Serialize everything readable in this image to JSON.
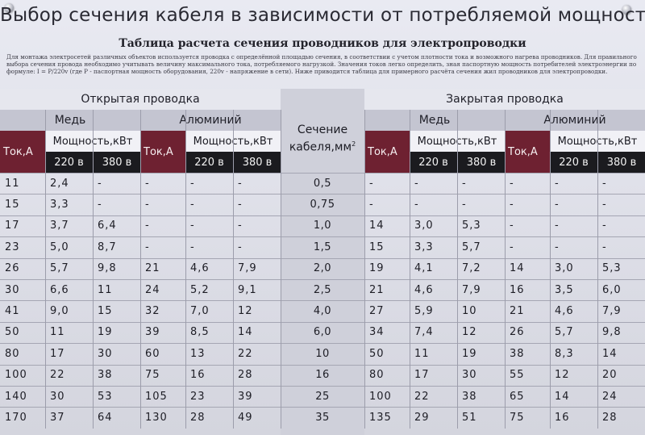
{
  "title": "Выбор сечения кабеля в зависимости от потребляемой мощности",
  "subtitle": "Таблица расчета сечения проводников для электропроводки",
  "note": "Для монтажа электросетей различных объектов используется проводка с определённой площадью сечения, в соответствии с учетом плотности тока и возможного нагрева проводников. Для правильного выбора сечения провода необходимо учитывать величину максимального тока, потребляемого нагрузкой. Значения токов легко определить, зная паспортную мощность потребителей электроэнергии по формуле: I = P/220v (где P - паспортная мощность оборудования, 220v - напряжение в сети). Ниже приводится таблица для примерного расчёта сечения жил проводников для электропроводки.",
  "headers": {
    "open_wiring": "Открытая проводка",
    "closed_wiring": "Закрытая проводка",
    "copper": "Медь",
    "aluminum": "Алюминий",
    "current": "Ток,А",
    "power": "Мощность,кВт",
    "v220": "220 в",
    "v380": "380 в",
    "section_line1": "Сечение",
    "section_line2": "кабеля,мм",
    "section_sup": "2"
  },
  "rows": [
    {
      "oc_i": "11",
      "oc_220": "2,4",
      "oc_380": "-",
      "oa_i": "-",
      "oa_220": "-",
      "oa_380": "-",
      "section": "0,5",
      "cc_i": "-",
      "cc_220": "-",
      "cc_380": "-",
      "ca_i": "-",
      "ca_220": "-",
      "ca_380": "-"
    },
    {
      "oc_i": "15",
      "oc_220": "3,3",
      "oc_380": "-",
      "oa_i": "-",
      "oa_220": "-",
      "oa_380": "-",
      "section": "0,75",
      "cc_i": "-",
      "cc_220": "-",
      "cc_380": "-",
      "ca_i": "-",
      "ca_220": "-",
      "ca_380": "-"
    },
    {
      "oc_i": "17",
      "oc_220": "3,7",
      "oc_380": "6,4",
      "oa_i": "-",
      "oa_220": "-",
      "oa_380": "-",
      "section": "1,0",
      "cc_i": "14",
      "cc_220": "3,0",
      "cc_380": "5,3",
      "ca_i": "-",
      "ca_220": "-",
      "ca_380": "-"
    },
    {
      "oc_i": "23",
      "oc_220": "5,0",
      "oc_380": "8,7",
      "oa_i": "-",
      "oa_220": "-",
      "oa_380": "-",
      "section": "1,5",
      "cc_i": "15",
      "cc_220": "3,3",
      "cc_380": "5,7",
      "ca_i": "-",
      "ca_220": "-",
      "ca_380": "-"
    },
    {
      "oc_i": "26",
      "oc_220": "5,7",
      "oc_380": "9,8",
      "oa_i": "21",
      "oa_220": "4,6",
      "oa_380": "7,9",
      "section": "2,0",
      "cc_i": "19",
      "cc_220": "4,1",
      "cc_380": "7,2",
      "ca_i": "14",
      "ca_220": "3,0",
      "ca_380": "5,3"
    },
    {
      "oc_i": "30",
      "oc_220": "6,6",
      "oc_380": "11",
      "oa_i": "24",
      "oa_220": "5,2",
      "oa_380": "9,1",
      "section": "2,5",
      "cc_i": "21",
      "cc_220": "4,6",
      "cc_380": "7,9",
      "ca_i": "16",
      "ca_220": "3,5",
      "ca_380": "6,0"
    },
    {
      "oc_i": "41",
      "oc_220": "9,0",
      "oc_380": "15",
      "oa_i": "32",
      "oa_220": "7,0",
      "oa_380": "12",
      "section": "4,0",
      "cc_i": "27",
      "cc_220": "5,9",
      "cc_380": "10",
      "ca_i": "21",
      "ca_220": "4,6",
      "ca_380": "7,9"
    },
    {
      "oc_i": "50",
      "oc_220": "11",
      "oc_380": "19",
      "oa_i": "39",
      "oa_220": "8,5",
      "oa_380": "14",
      "section": "6,0",
      "cc_i": "34",
      "cc_220": "7,4",
      "cc_380": "12",
      "ca_i": "26",
      "ca_220": "5,7",
      "ca_380": "9,8"
    },
    {
      "oc_i": "80",
      "oc_220": "17",
      "oc_380": "30",
      "oa_i": "60",
      "oa_220": "13",
      "oa_380": "22",
      "section": "10",
      "cc_i": "50",
      "cc_220": "11",
      "cc_380": "19",
      "ca_i": "38",
      "ca_220": "8,3",
      "ca_380": "14"
    },
    {
      "oc_i": "100",
      "oc_220": "22",
      "oc_380": "38",
      "oa_i": "75",
      "oa_220": "16",
      "oa_380": "28",
      "section": "16",
      "cc_i": "80",
      "cc_220": "17",
      "cc_380": "30",
      "ca_i": "55",
      "ca_220": "12",
      "ca_380": "20"
    },
    {
      "oc_i": "140",
      "oc_220": "30",
      "oc_380": "53",
      "oa_i": "105",
      "oa_220": "23",
      "oa_380": "39",
      "section": "25",
      "cc_i": "100",
      "cc_220": "22",
      "cc_380": "38",
      "ca_i": "65",
      "ca_220": "14",
      "ca_380": "24"
    },
    {
      "oc_i": "170",
      "oc_220": "37",
      "oc_380": "64",
      "oa_i": "130",
      "oa_220": "28",
      "oa_380": "49",
      "section": "35",
      "cc_i": "135",
      "cc_220": "29",
      "cc_380": "51",
      "ca_i": "75",
      "ca_220": "16",
      "ca_380": "28"
    }
  ]
}
